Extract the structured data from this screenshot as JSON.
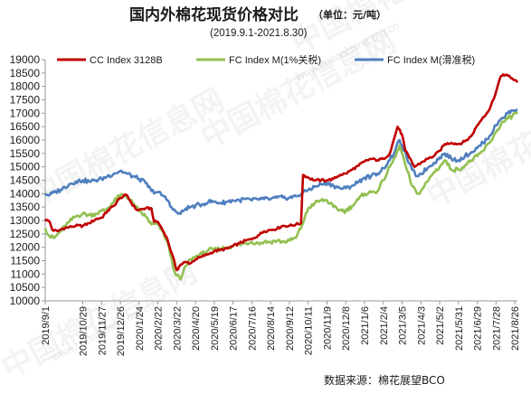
{
  "chart_data": {
    "type": "line",
    "title": "国内外棉花现货价格对比",
    "unit": "（单位：元/吨）",
    "subtitle": "(2019.9.1-2021.8.30)",
    "source": "数据来源：棉花展望BCO",
    "watermark": "中国棉花信息网",
    "watermark_url": "www.cottonchina.org.cn",
    "ylim": [
      10000,
      19000
    ],
    "yticks": [
      10000,
      10500,
      11000,
      11500,
      12000,
      12500,
      13000,
      13500,
      14000,
      14500,
      15000,
      15500,
      16000,
      16500,
      17000,
      17500,
      18000,
      18500,
      19000
    ],
    "xticks": [
      "2019/9/1",
      "2019/10/29",
      "2019/11/27",
      "2019/12/26",
      "2020/1/24",
      "2020/2/22",
      "2020/3/22",
      "2020/4/20",
      "2020/5/19",
      "2020/6/17",
      "2020/7/16",
      "2020/8/14",
      "2020/9/12",
      "2020/10/11",
      "2020/11/9",
      "2020/12/8",
      "2021/1/6",
      "2021/2/4",
      "2021/3/5",
      "2021/4/3",
      "2021/5/2",
      "2021/5/31",
      "2021/6/29",
      "2021/7/28",
      "2021/8/26"
    ],
    "grid": false,
    "legend_position": "top-left",
    "series": [
      {
        "name": "CC Index 3128B",
        "color": "#c00000",
        "points": [
          [
            "2019-09-01",
            13050
          ],
          [
            "2019-09-08",
            12950
          ],
          [
            "2019-09-12",
            12650
          ],
          [
            "2019-09-20",
            12600
          ],
          [
            "2019-09-28",
            12700
          ],
          [
            "2019-10-08",
            12750
          ],
          [
            "2019-10-18",
            12800
          ],
          [
            "2019-10-29",
            12800
          ],
          [
            "2019-11-08",
            12900
          ],
          [
            "2019-11-18",
            13050
          ],
          [
            "2019-11-27",
            13100
          ],
          [
            "2019-12-06",
            13350
          ],
          [
            "2019-12-16",
            13550
          ],
          [
            "2019-12-26",
            13850
          ],
          [
            "2020-01-05",
            13950
          ],
          [
            "2020-01-12",
            13650
          ],
          [
            "2020-01-20",
            13400
          ],
          [
            "2020-01-24",
            13400
          ],
          [
            "2020-02-03",
            13450
          ],
          [
            "2020-02-12",
            13450
          ],
          [
            "2020-02-16",
            12950
          ],
          [
            "2020-02-22",
            12950
          ],
          [
            "2020-02-28",
            12700
          ],
          [
            "2020-03-06",
            12400
          ],
          [
            "2020-03-14",
            11800
          ],
          [
            "2020-03-22",
            11150
          ],
          [
            "2020-03-28",
            11350
          ],
          [
            "2020-04-05",
            11450
          ],
          [
            "2020-04-12",
            11400
          ],
          [
            "2020-04-20",
            11550
          ],
          [
            "2020-04-30",
            11650
          ],
          [
            "2020-05-10",
            11750
          ],
          [
            "2020-05-19",
            11850
          ],
          [
            "2020-05-29",
            11900
          ],
          [
            "2020-06-08",
            11950
          ],
          [
            "2020-06-17",
            12050
          ],
          [
            "2020-06-27",
            12150
          ],
          [
            "2020-07-06",
            12250
          ],
          [
            "2020-07-16",
            12300
          ],
          [
            "2020-07-26",
            12450
          ],
          [
            "2020-08-04",
            12600
          ],
          [
            "2020-08-14",
            12650
          ],
          [
            "2020-08-24",
            12700
          ],
          [
            "2020-09-02",
            12800
          ],
          [
            "2020-09-12",
            12800
          ],
          [
            "2020-09-22",
            12850
          ],
          [
            "2020-09-30",
            12900
          ],
          [
            "2020-10-03",
            14700
          ],
          [
            "2020-10-11",
            14600
          ],
          [
            "2020-10-21",
            14500
          ],
          [
            "2020-10-31",
            14500
          ],
          [
            "2020-11-09",
            14500
          ],
          [
            "2020-11-19",
            14550
          ],
          [
            "2020-11-29",
            14700
          ],
          [
            "2020-12-08",
            14750
          ],
          [
            "2020-12-18",
            14900
          ],
          [
            "2020-12-28",
            15050
          ],
          [
            "2021-01-06",
            15200
          ],
          [
            "2021-01-16",
            15300
          ],
          [
            "2021-01-26",
            15250
          ],
          [
            "2021-02-04",
            15300
          ],
          [
            "2021-02-14",
            15500
          ],
          [
            "2021-02-20",
            16000
          ],
          [
            "2021-02-26",
            16500
          ],
          [
            "2021-03-05",
            16200
          ],
          [
            "2021-03-10",
            15600
          ],
          [
            "2021-03-16",
            15350
          ],
          [
            "2021-03-24",
            15000
          ],
          [
            "2021-04-03",
            15150
          ],
          [
            "2021-04-13",
            15300
          ],
          [
            "2021-04-23",
            15400
          ],
          [
            "2021-05-02",
            15600
          ],
          [
            "2021-05-10",
            15850
          ],
          [
            "2021-05-20",
            15900
          ],
          [
            "2021-05-31",
            15850
          ],
          [
            "2021-06-10",
            15950
          ],
          [
            "2021-06-20",
            16150
          ],
          [
            "2021-06-29",
            16550
          ],
          [
            "2021-07-08",
            16850
          ],
          [
            "2021-07-18",
            17150
          ],
          [
            "2021-07-28",
            17800
          ],
          [
            "2021-08-03",
            18300
          ],
          [
            "2021-08-08",
            18450
          ],
          [
            "2021-08-15",
            18400
          ],
          [
            "2021-08-22",
            18300
          ],
          [
            "2021-08-30",
            18150
          ]
        ]
      },
      {
        "name": "FC Index M(1%关税)",
        "color": "#92c050",
        "points": [
          [
            "2019-09-01",
            12700
          ],
          [
            "2019-09-08",
            12400
          ],
          [
            "2019-09-15",
            12350
          ],
          [
            "2019-09-25",
            12600
          ],
          [
            "2019-10-08",
            12950
          ],
          [
            "2019-10-18",
            13150
          ],
          [
            "2019-10-29",
            13250
          ],
          [
            "2019-11-08",
            13200
          ],
          [
            "2019-11-18",
            13250
          ],
          [
            "2019-11-27",
            13350
          ],
          [
            "2019-12-06",
            13450
          ],
          [
            "2019-12-16",
            13700
          ],
          [
            "2019-12-26",
            13950
          ],
          [
            "2020-01-05",
            13900
          ],
          [
            "2020-01-14",
            13650
          ],
          [
            "2020-01-24",
            13350
          ],
          [
            "2020-02-03",
            13150
          ],
          [
            "2020-02-12",
            12850
          ],
          [
            "2020-02-22",
            12850
          ],
          [
            "2020-03-02",
            12500
          ],
          [
            "2020-03-10",
            12000
          ],
          [
            "2020-03-16",
            11300
          ],
          [
            "2020-03-22",
            10950
          ],
          [
            "2020-03-28",
            10800
          ],
          [
            "2020-04-05",
            11300
          ],
          [
            "2020-04-12",
            11550
          ],
          [
            "2020-04-20",
            11650
          ],
          [
            "2020-04-30",
            11750
          ],
          [
            "2020-05-10",
            11900
          ],
          [
            "2020-05-19",
            11900
          ],
          [
            "2020-05-29",
            11950
          ],
          [
            "2020-06-08",
            12000
          ],
          [
            "2020-06-17",
            12050
          ],
          [
            "2020-06-27",
            12100
          ],
          [
            "2020-07-06",
            12150
          ],
          [
            "2020-07-16",
            12200
          ],
          [
            "2020-07-26",
            12150
          ],
          [
            "2020-08-04",
            12200
          ],
          [
            "2020-08-14",
            12200
          ],
          [
            "2020-08-24",
            12250
          ],
          [
            "2020-09-02",
            12200
          ],
          [
            "2020-09-12",
            12250
          ],
          [
            "2020-09-22",
            12350
          ],
          [
            "2020-10-01",
            12800
          ],
          [
            "2020-10-11",
            13450
          ],
          [
            "2020-10-21",
            13650
          ],
          [
            "2020-10-31",
            13750
          ],
          [
            "2020-11-09",
            13750
          ],
          [
            "2020-11-19",
            13500
          ],
          [
            "2020-11-29",
            13400
          ],
          [
            "2020-12-08",
            13350
          ],
          [
            "2020-12-18",
            13550
          ],
          [
            "2020-12-28",
            13800
          ],
          [
            "2021-01-06",
            14000
          ],
          [
            "2021-01-16",
            14050
          ],
          [
            "2021-01-26",
            14100
          ],
          [
            "2021-02-04",
            14500
          ],
          [
            "2021-02-14",
            15000
          ],
          [
            "2021-02-22",
            15350
          ],
          [
            "2021-03-01",
            15800
          ],
          [
            "2021-03-05",
            15500
          ],
          [
            "2021-03-12",
            14900
          ],
          [
            "2021-03-20",
            14300
          ],
          [
            "2021-03-28",
            14000
          ],
          [
            "2021-04-03",
            14100
          ],
          [
            "2021-04-13",
            14450
          ],
          [
            "2021-04-23",
            14800
          ],
          [
            "2021-05-02",
            15000
          ],
          [
            "2021-05-10",
            15250
          ],
          [
            "2021-05-20",
            14900
          ],
          [
            "2021-05-31",
            14900
          ],
          [
            "2021-06-10",
            15050
          ],
          [
            "2021-06-20",
            15250
          ],
          [
            "2021-06-29",
            15400
          ],
          [
            "2021-07-08",
            15600
          ],
          [
            "2021-07-18",
            15900
          ],
          [
            "2021-07-28",
            16300
          ],
          [
            "2021-08-05",
            16600
          ],
          [
            "2021-08-15",
            16800
          ],
          [
            "2021-08-22",
            16900
          ],
          [
            "2021-08-30",
            17050
          ]
        ]
      },
      {
        "name": "FC Index M(滑准税)",
        "color": "#4f7fbe",
        "points": [
          [
            "2019-09-01",
            14000
          ],
          [
            "2019-09-08",
            13950
          ],
          [
            "2019-09-15",
            14050
          ],
          [
            "2019-09-25",
            14150
          ],
          [
            "2019-10-08",
            14350
          ],
          [
            "2019-10-18",
            14450
          ],
          [
            "2019-10-29",
            14500
          ],
          [
            "2019-11-08",
            14450
          ],
          [
            "2019-11-18",
            14500
          ],
          [
            "2019-11-27",
            14550
          ],
          [
            "2019-12-06",
            14650
          ],
          [
            "2019-12-16",
            14750
          ],
          [
            "2019-12-26",
            14850
          ],
          [
            "2020-01-05",
            14750
          ],
          [
            "2020-01-14",
            14650
          ],
          [
            "2020-01-24",
            14550
          ],
          [
            "2020-02-03",
            14400
          ],
          [
            "2020-02-12",
            14100
          ],
          [
            "2020-02-22",
            14050
          ],
          [
            "2020-03-02",
            13900
          ],
          [
            "2020-03-10",
            13700
          ],
          [
            "2020-03-16",
            13400
          ],
          [
            "2020-03-22",
            13300
          ],
          [
            "2020-03-28",
            13250
          ],
          [
            "2020-04-05",
            13450
          ],
          [
            "2020-04-12",
            13500
          ],
          [
            "2020-04-20",
            13550
          ],
          [
            "2020-04-30",
            13600
          ],
          [
            "2020-05-10",
            13700
          ],
          [
            "2020-05-19",
            13700
          ],
          [
            "2020-05-29",
            13650
          ],
          [
            "2020-06-08",
            13700
          ],
          [
            "2020-06-17",
            13750
          ],
          [
            "2020-06-27",
            13750
          ],
          [
            "2020-07-06",
            13800
          ],
          [
            "2020-07-16",
            13750
          ],
          [
            "2020-07-26",
            13800
          ],
          [
            "2020-08-04",
            13800
          ],
          [
            "2020-08-14",
            13800
          ],
          [
            "2020-08-24",
            13850
          ],
          [
            "2020-09-02",
            13850
          ],
          [
            "2020-09-12",
            13850
          ],
          [
            "2020-09-22",
            13900
          ],
          [
            "2020-10-01",
            14000
          ],
          [
            "2020-10-11",
            14150
          ],
          [
            "2020-10-21",
            14250
          ],
          [
            "2020-10-31",
            14350
          ],
          [
            "2020-11-09",
            14400
          ],
          [
            "2020-11-19",
            14300
          ],
          [
            "2020-11-29",
            14200
          ],
          [
            "2020-12-08",
            14200
          ],
          [
            "2020-12-18",
            14300
          ],
          [
            "2020-12-28",
            14450
          ],
          [
            "2021-01-06",
            14600
          ],
          [
            "2021-01-16",
            14650
          ],
          [
            "2021-01-26",
            14750
          ],
          [
            "2021-02-04",
            14950
          ],
          [
            "2021-02-14",
            15250
          ],
          [
            "2021-02-22",
            15600
          ],
          [
            "2021-03-01",
            16000
          ],
          [
            "2021-03-05",
            15800
          ],
          [
            "2021-03-12",
            15350
          ],
          [
            "2021-03-20",
            14900
          ],
          [
            "2021-03-28",
            14650
          ],
          [
            "2021-04-03",
            14750
          ],
          [
            "2021-04-13",
            14950
          ],
          [
            "2021-04-23",
            15150
          ],
          [
            "2021-05-02",
            15350
          ],
          [
            "2021-05-10",
            15500
          ],
          [
            "2021-05-20",
            15300
          ],
          [
            "2021-05-31",
            15250
          ],
          [
            "2021-06-10",
            15400
          ],
          [
            "2021-06-20",
            15550
          ],
          [
            "2021-06-29",
            15700
          ],
          [
            "2021-07-08",
            15900
          ],
          [
            "2021-07-18",
            16150
          ],
          [
            "2021-07-28",
            16550
          ],
          [
            "2021-08-05",
            16800
          ],
          [
            "2021-08-15",
            17000
          ],
          [
            "2021-08-22",
            17100
          ],
          [
            "2021-08-30",
            17150
          ]
        ]
      }
    ]
  }
}
